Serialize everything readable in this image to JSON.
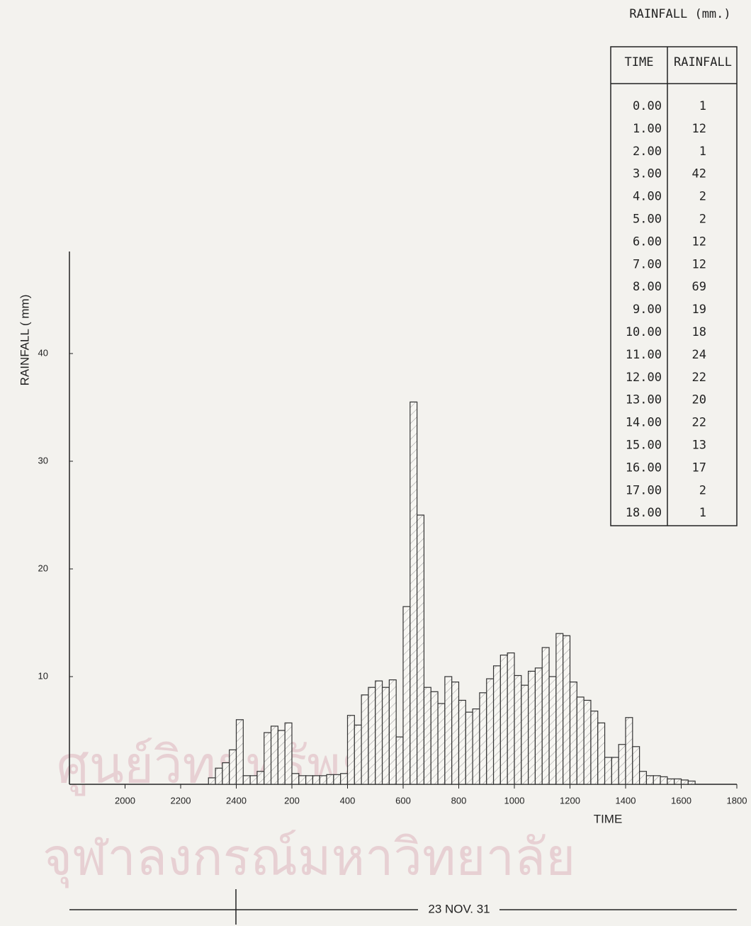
{
  "chart_data": {
    "type": "histogram",
    "y_label": "RAINFALL ( mm)",
    "x_label": "TIME",
    "date_label": "23 NOV. 31",
    "bins": [
      3,
      3.25,
      3.5,
      3.75,
      4,
      4.25,
      4.5,
      4.75,
      5,
      5.25,
      5.5,
      5.75,
      6,
      6.25,
      6.5,
      6.75,
      7,
      7.25,
      7.5,
      7.75,
      8,
      8.25,
      8.5,
      8.75,
      9,
      9.25,
      9.5,
      9.75,
      10,
      10.25,
      10.5,
      10.75,
      11,
      11.25,
      11.5,
      11.75,
      12,
      12.25,
      12.5,
      12.75,
      13,
      13.25,
      13.5,
      13.75,
      14,
      14.25,
      14.5,
      14.75,
      15,
      15.25,
      15.5,
      15.75,
      16,
      16.25,
      16.5,
      16.75,
      17,
      17.25,
      17.5,
      17.75,
      18,
      18.25,
      18.5,
      18.75,
      19,
      19.25,
      19.5,
      19.75,
      20,
      20.25,
      20.5
    ],
    "values": [
      0.6,
      1.5,
      2,
      3.2,
      6,
      0.8,
      0.8,
      1.2,
      4.8,
      5.4,
      5,
      5.7,
      1,
      0.8,
      0.8,
      0.8,
      0.8,
      0.9,
      0.9,
      1,
      6.4,
      5.5,
      8.3,
      9,
      9.6,
      9,
      9.7,
      4.4,
      16.5,
      35.5,
      25,
      9,
      8.6,
      7.5,
      10,
      9.5,
      7.8,
      6.7,
      7,
      8.5,
      9.8,
      11,
      12,
      12.2,
      10.1,
      9.2,
      10.5,
      10.8,
      12.7,
      10,
      14,
      13.8,
      9.5,
      8.1,
      7.8,
      6.8,
      5.7,
      2.5,
      2.5,
      3.7,
      6.2,
      3.5,
      1.2,
      0.8,
      0.8,
      0.7,
      0.5,
      0.5,
      0.4,
      0.3
    ],
    "color": "#333333",
    "xlim": [
      -2,
      22
    ],
    "xticks": [
      {
        "value": 0,
        "label": "2000"
      },
      {
        "value": 2,
        "label": "2200"
      },
      {
        "value": 4,
        "label": "2400"
      },
      {
        "value": 6,
        "label": "200"
      },
      {
        "value": 8,
        "label": "400"
      },
      {
        "value": 10,
        "label": "600"
      },
      {
        "value": 12,
        "label": "800"
      },
      {
        "value": 14,
        "label": "1000"
      },
      {
        "value": 16,
        "label": "1200"
      },
      {
        "value": 18,
        "label": "1400"
      },
      {
        "value": 20,
        "label": "1600"
      },
      {
        "value": 22,
        "label": "1800"
      }
    ],
    "ylim": [
      0,
      50
    ],
    "yticks": [
      10,
      20,
      30,
      40
    ],
    "grid": false
  },
  "table": {
    "title": "RAINFALL (mm.)",
    "header": [
      "TIME",
      "RAINFALL"
    ],
    "rows": [
      [
        "0.00",
        1
      ],
      [
        "1.00",
        12
      ],
      [
        "2.00",
        1
      ],
      [
        "3.00",
        42
      ],
      [
        "4.00",
        2
      ],
      [
        "5.00",
        2
      ],
      [
        "6.00",
        12
      ],
      [
        "7.00",
        12
      ],
      [
        "8.00",
        69
      ],
      [
        "9.00",
        19
      ],
      [
        "10.00",
        18
      ],
      [
        "11.00",
        24
      ],
      [
        "12.00",
        22
      ],
      [
        "13.00",
        20
      ],
      [
        "14.00",
        22
      ],
      [
        "15.00",
        13
      ],
      [
        "16.00",
        17
      ],
      [
        "17.00",
        2
      ],
      [
        "18.00",
        1
      ]
    ]
  },
  "watermark": [
    "ศูนย์วิทยทรัพยากร",
    "จุฬาลงกรณ์มหาวิทยาลัย"
  ]
}
